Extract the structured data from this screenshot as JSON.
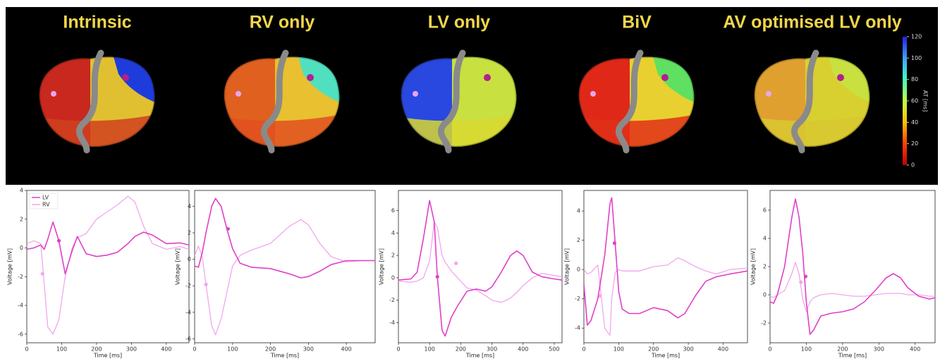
{
  "panels": {
    "titles": [
      "Intrinsic",
      "RV only",
      "LV only",
      "BiV",
      "AV optimised LV only"
    ],
    "colorbar": {
      "label": "AT [ms]",
      "lim": [
        0,
        120
      ],
      "ticks": [
        0,
        20,
        40,
        60,
        80,
        100,
        120
      ]
    }
  },
  "chart_data": [
    {
      "type": "line",
      "x_label": "Time [ms]",
      "y_label": "Voltage [mV]",
      "legend": "upper left",
      "x": [
        0,
        20,
        40,
        50,
        60,
        75,
        92,
        110,
        130,
        145,
        170,
        200,
        230,
        260,
        290,
        310,
        335,
        360,
        400,
        440,
        465
      ],
      "series": [
        {
          "name": "LV",
          "color": "#e040c8",
          "values": [
            -0.1,
            0,
            0.2,
            -0.1,
            0.6,
            1.8,
            0.5,
            -1.8,
            -0.2,
            0.8,
            -0.4,
            -0.6,
            -0.5,
            -0.3,
            0.3,
            0.8,
            1.1,
            0.9,
            0.3,
            0.35,
            0.2
          ],
          "marker": [
            92,
            0.5
          ]
        },
        {
          "name": "RV",
          "color": "#f2a6ec",
          "values": [
            0.3,
            0.5,
            0.3,
            -2.5,
            -5.5,
            -6.0,
            -5.0,
            -2.0,
            0,
            0.7,
            1.0,
            2.0,
            2.5,
            3.0,
            3.6,
            3.2,
            1.5,
            0.3,
            -0.1,
            0.1,
            -0.1
          ],
          "marker": [
            45,
            -1.8
          ]
        }
      ],
      "xlim": [
        0,
        465
      ],
      "xticks": [
        0,
        100,
        200,
        300,
        400
      ],
      "ylim": [
        -6.6,
        4.0
      ],
      "yticks": [
        -6,
        -4,
        -2,
        0,
        2,
        4
      ]
    },
    {
      "type": "line",
      "x_label": "Time [ms]",
      "y_label": "Voltage [mV]",
      "x": [
        0,
        10,
        20,
        30,
        45,
        55,
        70,
        85,
        100,
        120,
        150,
        200,
        250,
        280,
        300,
        330,
        360,
        400,
        440,
        476
      ],
      "series": [
        {
          "color": "#e040c8",
          "values": [
            -0.5,
            -0.6,
            0.5,
            2.0,
            4.0,
            4.6,
            4.0,
            2.3,
            0.8,
            -0.3,
            -0.6,
            -0.7,
            -1.1,
            -1.4,
            -1.3,
            -0.9,
            -0.4,
            -0.1,
            -0.1,
            -0.1
          ],
          "marker": [
            88,
            2.3
          ]
        },
        {
          "color": "#f2a6ec",
          "values": [
            0.3,
            1.0,
            0.2,
            -1.9,
            -5.0,
            -5.7,
            -4.5,
            -2.5,
            -0.5,
            0.3,
            0.7,
            1.2,
            2.5,
            3.0,
            2.6,
            1.2,
            0.2,
            -0.2,
            -0.1,
            -0.1
          ],
          "marker": [
            30,
            -1.9
          ]
        }
      ],
      "xlim": [
        0,
        476
      ],
      "xticks": [
        0,
        100,
        200,
        300,
        400
      ],
      "ylim": [
        -6.3,
        5.2
      ],
      "yticks": [
        -6,
        -4,
        -2,
        0,
        2,
        4
      ]
    },
    {
      "type": "line",
      "x_label": "Time [ms]",
      "y_label": "Voltage [mV]",
      "x": [
        0,
        40,
        60,
        80,
        100,
        115,
        125,
        140,
        150,
        170,
        190,
        220,
        250,
        280,
        300,
        330,
        360,
        380,
        400,
        430,
        460,
        500,
        525
      ],
      "series": [
        {
          "color": "#e040c8",
          "values": [
            -0.2,
            -0.1,
            0.5,
            3.5,
            6.9,
            5.0,
            0.1,
            -4.7,
            -5.2,
            -3.5,
            -2.5,
            -1.2,
            -1.0,
            -1.2,
            -0.8,
            0.5,
            2.0,
            2.4,
            2.0,
            0.5,
            0.1,
            -0.1,
            -0.2
          ],
          "marker": [
            125,
            0.1
          ]
        },
        {
          "color": "#f2a6ec",
          "values": [
            -0.3,
            -0.4,
            -0.3,
            0,
            1.5,
            5.0,
            4.5,
            2.0,
            1.4,
            0.6,
            0,
            -0.9,
            -1.1,
            -1.6,
            -2.0,
            -2.2,
            -1.8,
            -1.3,
            -0.7,
            0,
            0.4,
            0.2,
            0.1
          ],
          "marker": [
            185,
            1.3
          ]
        }
      ],
      "xlim": [
        0,
        525
      ],
      "xticks": [
        0,
        100,
        200,
        300,
        400,
        500
      ],
      "ylim": [
        -5.8,
        7.8
      ],
      "yticks": [
        -4,
        -2,
        0,
        2,
        4,
        6
      ]
    },
    {
      "type": "line",
      "x_label": "Time [ms]",
      "y_label": "Voltage [mV]",
      "x": [
        0,
        10,
        20,
        40,
        60,
        75,
        80,
        90,
        100,
        110,
        130,
        160,
        200,
        240,
        270,
        290,
        320,
        350,
        380,
        420,
        470
      ],
      "series": [
        {
          "color": "#e040c8",
          "values": [
            -1.0,
            -3.8,
            -3.5,
            -2.0,
            1.0,
            4.5,
            4.9,
            1.8,
            -1.5,
            -2.7,
            -3.0,
            -3.0,
            -2.6,
            -2.8,
            -3.3,
            -3.0,
            -1.8,
            -0.8,
            -0.5,
            -0.3,
            -0.1
          ],
          "marker": [
            88,
            1.8
          ]
        },
        {
          "color": "#f2a6ec",
          "values": [
            0,
            -0.3,
            -0.2,
            0.3,
            -4.0,
            -4.5,
            -2.0,
            -0.2,
            0,
            -0.1,
            -0.1,
            -0.1,
            0.2,
            0.3,
            0.8,
            0.6,
            0.2,
            -0.1,
            -0.3,
            0,
            0.1
          ],
          "marker": [
            45,
            -1.8
          ]
        }
      ],
      "xlim": [
        0,
        470
      ],
      "xticks": [
        0,
        100,
        200,
        300,
        400
      ],
      "ylim": [
        -5.0,
        5.4
      ],
      "yticks": [
        -4,
        -2,
        0,
        2,
        4
      ]
    },
    {
      "type": "line",
      "x_label": "Time [ms]",
      "y_label": "Voltage [mV]",
      "x": [
        0,
        10,
        20,
        40,
        60,
        70,
        80,
        90,
        100,
        110,
        120,
        140,
        170,
        200,
        230,
        260,
        290,
        320,
        340,
        360,
        380,
        410,
        440,
        455
      ],
      "series": [
        {
          "color": "#e040c8",
          "values": [
            -0.5,
            -0.6,
            0,
            2.0,
            5.5,
            6.8,
            5.5,
            3.0,
            -0.5,
            -2.8,
            -2.5,
            -1.5,
            -1.3,
            -1.2,
            -1.0,
            -0.5,
            0.3,
            1.2,
            1.5,
            1.2,
            0.5,
            -0.1,
            -0.3,
            -0.2
          ],
          "marker": [
            98,
            1.3
          ]
        },
        {
          "color": "#f2a6ec",
          "values": [
            -0.1,
            -0.2,
            0,
            0.3,
            1.5,
            2.3,
            1.5,
            -0.3,
            -1.2,
            -0.5,
            -0.2,
            0,
            0.1,
            0,
            -0.1,
            -0.1,
            0,
            0.1,
            0.1,
            0.1,
            0,
            0,
            -0.1,
            -0.1
          ],
          "marker": [
            85,
            0.9
          ]
        }
      ],
      "xlim": [
        0,
        455
      ],
      "xticks": [
        0,
        100,
        200,
        300,
        400
      ],
      "ylim": [
        -3.4,
        7.4
      ],
      "yticks": [
        -2,
        0,
        2,
        4,
        6
      ]
    }
  ]
}
